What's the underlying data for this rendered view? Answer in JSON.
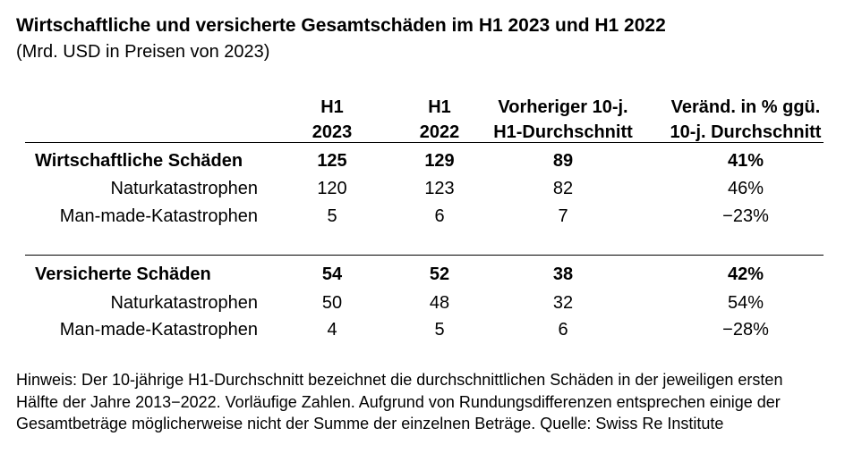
{
  "title": "Wirtschaftliche und versicherte Gesamtschäden im H1 2023 und H1 2022",
  "subtitle": "(Mrd. USD in Preisen von 2023)",
  "columns": [
    {
      "line1": "H1",
      "line2": "2023"
    },
    {
      "line1": "H1",
      "line2": "2022"
    },
    {
      "line1": "Vorheriger 10-j.",
      "line2": "H1-Durchschnitt"
    },
    {
      "line1": "Veränd. in % ggü.",
      "line2": "10-j. Durchschnitt"
    }
  ],
  "sections": [
    {
      "total": {
        "label": "Wirtschaftliche Schäden",
        "values": [
          "125",
          "129",
          "89",
          "41%"
        ]
      },
      "rows": [
        {
          "label": "Naturkatastrophen",
          "values": [
            "120",
            "123",
            "82",
            "46%"
          ]
        },
        {
          "label": "Man-made-Katastrophen",
          "values": [
            "5",
            "6",
            "7",
            "−23%"
          ]
        }
      ]
    },
    {
      "total": {
        "label": "Versicherte Schäden",
        "values": [
          "54",
          "52",
          "38",
          "42%"
        ]
      },
      "rows": [
        {
          "label": "Naturkatastrophen",
          "values": [
            "50",
            "48",
            "32",
            "54%"
          ]
        },
        {
          "label": "Man-made-Katastrophen",
          "values": [
            "4",
            "5",
            "6",
            "−28%"
          ]
        }
      ]
    }
  ],
  "note": "Hinweis: Der 10-jährige H1-Durchschnitt bezeichnet die durchschnittlichen Schäden in der jeweiligen ersten Hälfte der Jahre 2013−2022. Vorläufige Zahlen. Aufgrund von Rundungsdifferenzen entsprechen einige der Gesamtbeträge möglicherweise nicht der Summe der einzelnen Beträge. Quelle: Swiss Re Institute"
}
